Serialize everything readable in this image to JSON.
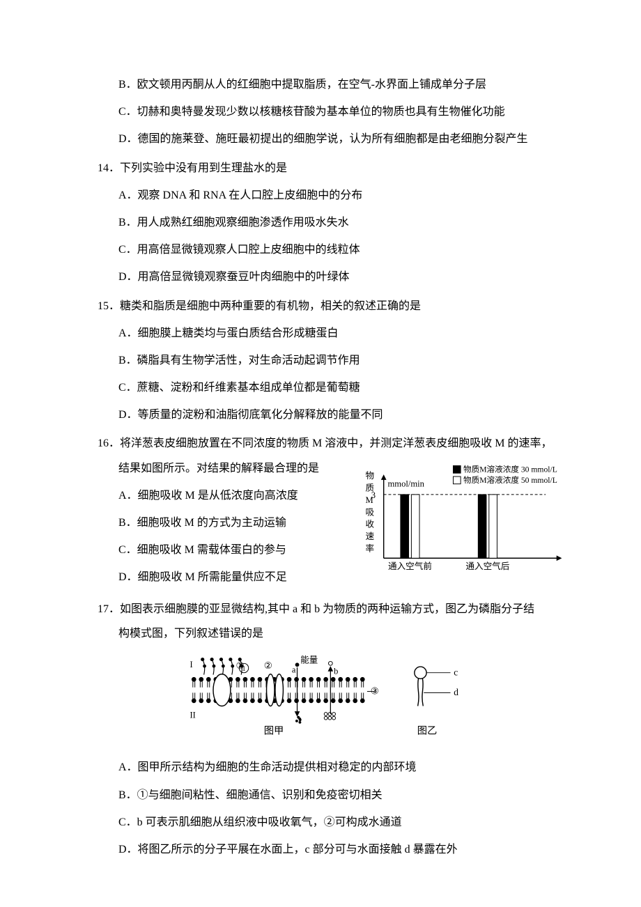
{
  "partialOptions13": {
    "B": "B．欧文顿用丙酮从人的红细胞中提取脂质，在空气-水界面上铺成单分子层",
    "C": "C．切赫和奥特曼发现少数以核糖核苷酸为基本单位的物质也具有生物催化功能",
    "D": "D．德国的施莱登、施旺最初提出的细胞学说，认为所有细胞都是由老细胞分裂产生"
  },
  "q14": {
    "num": "14．",
    "stem": "下列实验中没有用到生理盐水的是",
    "opts": {
      "A": "A．观察 DNA 和 RNA 在人口腔上皮细胞中的分布",
      "B": "B．用人成熟红细胞观察细胞渗透作用吸水失水",
      "C": "C．用高倍显微镜观察人口腔上皮细胞中的线粒体",
      "D": "D．用高倍显微镜观察蚕豆叶肉细胞中的叶绿体"
    }
  },
  "q15": {
    "num": "15．",
    "stem": "糖类和脂质是细胞中两种重要的有机物，相关的叙述正确的是",
    "opts": {
      "A": "A．细胞膜上糖类均与蛋白质结合形成糖蛋白",
      "B": "B．磷脂具有生物学活性，对生命活动起调节作用",
      "C": "C．蔗糖、淀粉和纤维素基本组成单位都是葡萄糖",
      "D": "D．等质量的淀粉和油脂彻底氧化分解释放的能量不同"
    }
  },
  "q16": {
    "num": "16．",
    "stem1": "将洋葱表皮细胞放置在不同浓度的物质 M 溶液中，并测定洋葱表皮细胞吸收 M 的速率，",
    "stem2": "结果如图所示。对结果的解释最合理的是",
    "opts": {
      "A": "A．细胞吸收 M 是从低浓度向高浓度",
      "B": "B．细胞吸收 M 的方式为主动运输",
      "C": "C．细胞吸收 M 需载体蛋白的参与",
      "D": "D．细胞吸收 M 所需能量供应不足"
    },
    "chart": {
      "type": "bar",
      "y_unit": "mmol/min",
      "y_label_lines": [
        "物",
        "质",
        "M",
        "吸",
        "收",
        "速",
        "率"
      ],
      "y_tick_value": 3,
      "categories": [
        "通入空气前",
        "通入空气后"
      ],
      "series": [
        {
          "name": "物质M溶液浓度 30 mmol/L",
          "color": "#000000",
          "values": [
            3,
            3
          ]
        },
        {
          "name": "物质M溶液浓度 50 mmol/L",
          "color": "#ffffff",
          "values": [
            3,
            3
          ]
        }
      ],
      "axis_color": "#000000",
      "dash_color": "#000000",
      "font_size_axis": 13,
      "font_size_legend": 12
    }
  },
  "q17": {
    "num": "17．",
    "stem1": "如图表示细胞膜的亚显微结构,其中 a 和 b 为物质的两种运输方式，图乙为磷脂分子结",
    "stem2": "构模式图，下列叙述错误的是",
    "fig": {
      "labels": {
        "cap1": "图甲",
        "cap2": "图乙",
        "I": "I",
        "II": "II",
        "n1": "①",
        "n2": "②",
        "n3": "③",
        "a": "a",
        "b": "b",
        "c": "c",
        "d": "d",
        "energy": "能量"
      },
      "stroke": "#000000",
      "fill_dark": "#000000",
      "fill_light": "#ffffff"
    },
    "opts": {
      "A": "A．图甲所示结构为细胞的生命活动提供相对稳定的内部环境",
      "B": "B．①与细胞间粘性、细胞通信、识别和免疫密切相关",
      "C": "C．b 可表示肌细胞从组织液中吸收氧气，②可构成水通道",
      "D": "D．将图乙所示的分子平展在水面上，c 部分可与水面接触 d 暴露在外"
    }
  }
}
